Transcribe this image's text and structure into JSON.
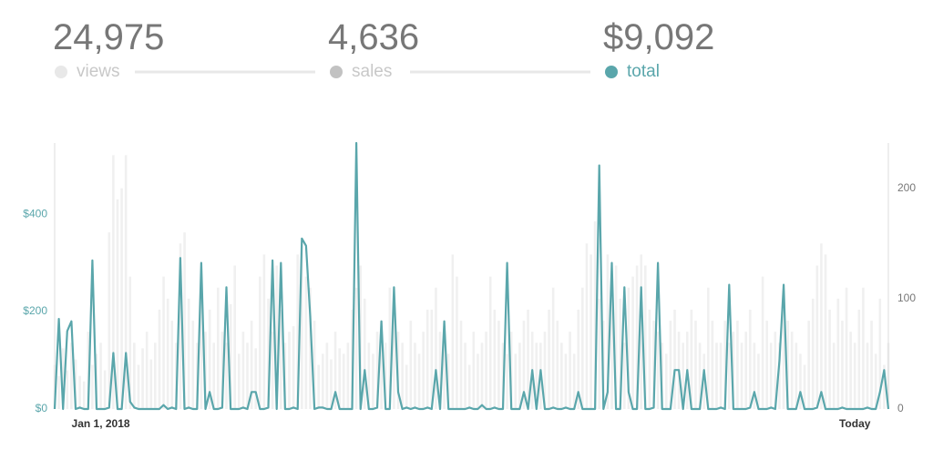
{
  "summary": [
    {
      "value": "24,975",
      "label": "views",
      "color": "#e8e8e8"
    },
    {
      "value": "4,636",
      "label": "sales",
      "color": "#c2c2c2"
    },
    {
      "value": "$9,092",
      "label": "total",
      "color": "#5aa6ab"
    }
  ],
  "chart_data": {
    "type": "combo",
    "categories": [
      null,
      null,
      null,
      null,
      null,
      null,
      null,
      null,
      null,
      null,
      null,
      "Jan 1, 2018",
      null,
      null,
      null,
      null,
      null,
      null,
      null,
      null,
      null,
      null,
      null,
      null,
      null,
      null,
      null,
      null,
      null,
      null,
      null,
      null,
      null,
      null,
      null,
      null,
      null,
      null,
      null,
      null,
      null,
      null,
      null,
      null,
      null,
      null,
      null,
      null,
      null,
      null,
      null,
      null,
      null,
      null,
      null,
      null,
      null,
      null,
      null,
      null,
      null,
      null,
      null,
      null,
      null,
      null,
      null,
      null,
      null,
      null,
      null,
      null,
      null,
      null,
      null,
      null,
      null,
      null,
      null,
      null,
      null,
      null,
      null,
      null,
      null,
      null,
      null,
      null,
      null,
      null,
      null,
      null,
      null,
      null,
      null,
      null,
      null,
      null,
      null,
      null,
      null,
      null,
      null,
      null,
      null,
      null,
      null,
      null,
      null,
      null,
      null,
      null,
      null,
      null,
      null,
      null,
      null,
      null,
      null,
      null,
      null,
      null,
      null,
      null,
      null,
      null,
      null,
      null,
      null,
      null,
      null,
      null,
      null,
      null,
      null,
      null,
      null,
      null,
      null,
      null,
      null,
      null,
      null,
      null,
      null,
      null,
      null,
      null,
      null,
      null,
      null,
      null,
      null,
      null,
      null,
      null,
      null,
      null,
      null,
      null,
      null,
      null,
      null,
      null,
      null,
      null,
      null,
      null,
      null,
      null,
      null,
      null,
      null,
      null,
      null,
      null,
      null,
      null,
      null,
      null,
      null,
      null,
      null,
      null,
      null,
      null,
      null,
      null,
      null,
      null,
      null,
      "Today",
      null,
      null,
      null,
      null,
      null,
      null,
      null,
      null
    ],
    "series": [
      {
        "name": "views",
        "type": "bar",
        "axis": "y2",
        "color": "#f0f0f0",
        "values": [
          40,
          30,
          55,
          35,
          60,
          45,
          30,
          25,
          70,
          40,
          50,
          60,
          35,
          160,
          230,
          190,
          200,
          230,
          120,
          60,
          40,
          55,
          70,
          45,
          60,
          90,
          120,
          100,
          80,
          60,
          150,
          160,
          100,
          80,
          60,
          120,
          70,
          90,
          60,
          110,
          70,
          60,
          95,
          130,
          50,
          70,
          60,
          80,
          55,
          120,
          140,
          100,
          70,
          130,
          90,
          60,
          70,
          75,
          140,
          150,
          120,
          110,
          80,
          40,
          50,
          60,
          45,
          70,
          55,
          50,
          60,
          90,
          110,
          130,
          100,
          60,
          50,
          70,
          80,
          60,
          110,
          100,
          70,
          60,
          40,
          80,
          60,
          50,
          70,
          90,
          90,
          110,
          70,
          60,
          50,
          140,
          120,
          80,
          60,
          40,
          70,
          50,
          60,
          70,
          120,
          90,
          80,
          60,
          50,
          70,
          50,
          60,
          80,
          90,
          70,
          60,
          60,
          70,
          90,
          110,
          80,
          60,
          50,
          70,
          50,
          90,
          110,
          150,
          140,
          170,
          100,
          80,
          140,
          120,
          130,
          100,
          60,
          110,
          120,
          130,
          140,
          130,
          90,
          80,
          70,
          60,
          50,
          80,
          90,
          70,
          60,
          70,
          90,
          80,
          60,
          50,
          110,
          80,
          60,
          60,
          80,
          60,
          70,
          80,
          60,
          70,
          90,
          60,
          50,
          120,
          80,
          60,
          70,
          60,
          90,
          80,
          70,
          60,
          50,
          40,
          80,
          100,
          130,
          150,
          140,
          90,
          60,
          100,
          80,
          110,
          70,
          60,
          90,
          110,
          60,
          80,
          50,
          100,
          40,
          60
        ]
      },
      {
        "name": "total",
        "type": "line",
        "axis": "y",
        "color": "#5aa6ab",
        "values": [
          0,
          185,
          0,
          160,
          180,
          0,
          3,
          0,
          0,
          305,
          0,
          0,
          0,
          3,
          115,
          0,
          0,
          115,
          15,
          3,
          0,
          0,
          0,
          0,
          0,
          0,
          8,
          0,
          3,
          0,
          310,
          0,
          3,
          0,
          0,
          300,
          0,
          35,
          0,
          0,
          3,
          250,
          0,
          0,
          0,
          3,
          0,
          35,
          35,
          0,
          0,
          3,
          305,
          0,
          300,
          0,
          0,
          3,
          0,
          350,
          335,
          190,
          0,
          3,
          3,
          0,
          0,
          35,
          0,
          0,
          0,
          0,
          546,
          0,
          80,
          0,
          0,
          3,
          180,
          0,
          0,
          250,
          35,
          0,
          3,
          0,
          3,
          0,
          0,
          3,
          0,
          80,
          0,
          180,
          0,
          0,
          0,
          0,
          0,
          3,
          0,
          0,
          8,
          0,
          0,
          3,
          0,
          0,
          300,
          0,
          0,
          0,
          35,
          0,
          80,
          0,
          80,
          0,
          0,
          3,
          0,
          0,
          3,
          0,
          0,
          35,
          0,
          0,
          0,
          0,
          500,
          0,
          35,
          300,
          0,
          0,
          250,
          35,
          0,
          0,
          250,
          0,
          0,
          3,
          300,
          0,
          0,
          0,
          80,
          80,
          0,
          80,
          0,
          0,
          0,
          80,
          0,
          0,
          0,
          3,
          0,
          255,
          0,
          0,
          0,
          0,
          3,
          35,
          0,
          0,
          0,
          3,
          0,
          100,
          255,
          0,
          0,
          0,
          35,
          0,
          0,
          0,
          3,
          35,
          0,
          0,
          0,
          0,
          3,
          0,
          0,
          0,
          0,
          0,
          3,
          0,
          0,
          35,
          80,
          0
        ]
      }
    ],
    "ylim": [
      0,
      546
    ],
    "yticks": [
      {
        "value": 0,
        "label": "$0"
      },
      {
        "value": 200,
        "label": "$200"
      },
      {
        "value": 400,
        "label": "$400"
      }
    ],
    "y2lim": [
      0,
      241
    ],
    "y2ticks": [
      0,
      100,
      200
    ]
  }
}
